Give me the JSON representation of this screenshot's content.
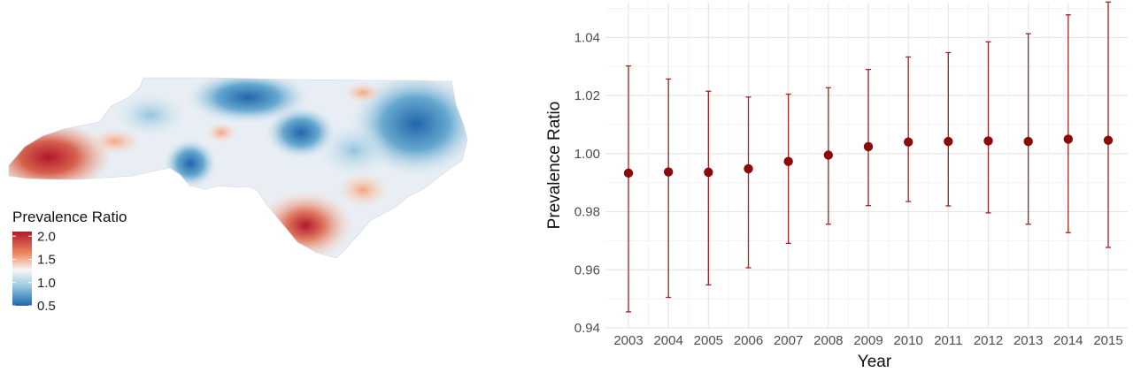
{
  "map": {
    "legend_title": "Prevalence Ratio",
    "legend_ticks": [
      "2.0",
      "1.5",
      "1.0",
      "0.5"
    ],
    "legend_tick_values": [
      2.0,
      1.5,
      1.0,
      0.5
    ],
    "legend_range": [
      0.5,
      2.1
    ],
    "colors": {
      "low": "#2166ac",
      "mid": "#f7f7f7",
      "high": "#b2182b"
    }
  },
  "chart_data": {
    "type": "scatter",
    "title": "",
    "xlabel": "Year",
    "ylabel": "Prevalence Ratio",
    "ylim": [
      0.94,
      1.052
    ],
    "y_ticks": [
      0.94,
      0.96,
      0.98,
      1.0,
      1.02,
      1.04
    ],
    "y_tick_labels": [
      "0.94",
      "0.96",
      "0.98",
      "1.00",
      "1.02",
      "1.04"
    ],
    "categories": [
      "2003",
      "2004",
      "2005",
      "2006",
      "2007",
      "2008",
      "2009",
      "2010",
      "2011",
      "2012",
      "2013",
      "2014",
      "2015"
    ],
    "values": [
      0.9933,
      0.9937,
      0.9936,
      0.9948,
      0.9973,
      0.9995,
      1.0024,
      1.004,
      1.0042,
      1.0044,
      1.0042,
      1.005,
      1.0046
    ],
    "lower": [
      0.9455,
      0.9505,
      0.9548,
      0.9607,
      0.9691,
      0.9757,
      0.9821,
      0.9835,
      0.982,
      0.9796,
      0.9757,
      0.9728,
      0.9677
    ],
    "upper": [
      1.0302,
      1.0257,
      1.0215,
      1.0195,
      1.0205,
      1.0227,
      1.029,
      1.0333,
      1.0348,
      1.0385,
      1.0413,
      1.0478,
      1.0522
    ],
    "grid": true,
    "colors": {
      "point": "#8b0a0a",
      "errorbar": "#a0251e",
      "grid": "#ebebeb"
    }
  }
}
